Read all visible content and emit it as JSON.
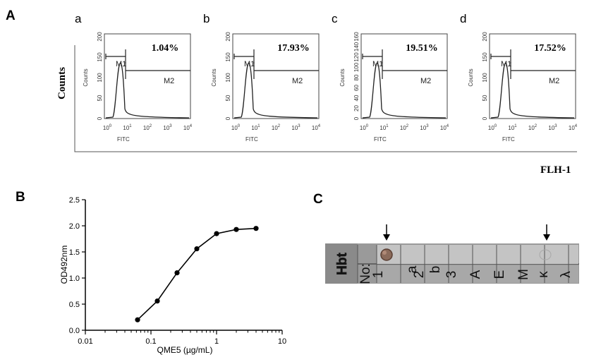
{
  "panel_a": {
    "letter": "A",
    "y_label": "Counts",
    "x_label_outer": "FLH-1",
    "histograms": [
      {
        "sub": "a",
        "pct": "1.04%",
        "y_ticks": [
          "0",
          "50",
          "100",
          "150",
          "200"
        ],
        "x_label": "FITC",
        "gate1": "M1",
        "gate2": "M2",
        "y_axis_label": "Counts"
      },
      {
        "sub": "b",
        "pct": "17.93%",
        "y_ticks": [
          "0",
          "50",
          "100",
          "150",
          "200"
        ],
        "x_label": "FITC",
        "gate1": "M1",
        "gate2": "M2",
        "y_axis_label": "Counts"
      },
      {
        "sub": "c",
        "pct": "19.51%",
        "y_ticks": [
          "0",
          "20",
          "40",
          "60",
          "80",
          "100",
          "120",
          "140",
          "160"
        ],
        "x_label": "FITC",
        "gate1": "M1",
        "gate2": "M2",
        "y_axis_label": "Counts"
      },
      {
        "sub": "d",
        "pct": "17.52%",
        "y_ticks": [
          "0",
          "50",
          "100",
          "150",
          "200"
        ],
        "x_label": "FITC",
        "gate1": "M1",
        "gate2": "M2",
        "y_axis_label": "Counts"
      }
    ],
    "x_ticks": [
      "10",
      "10",
      "10",
      "10",
      "10"
    ],
    "x_exps": [
      "0",
      "1",
      "2",
      "3",
      "4"
    ]
  },
  "panel_b": {
    "letter": "B",
    "chart_data": {
      "type": "line",
      "xlabel": "QME5 (µg/mL)",
      "ylabel": "OD492nm",
      "xscale": "log",
      "xlim": [
        0.01,
        10
      ],
      "ylim": [
        0,
        2.5
      ],
      "x_tick_labels": [
        "0.01",
        "0.1",
        "1",
        "10"
      ],
      "y_tick_labels": [
        "0.0",
        "0.5",
        "1.0",
        "1.5",
        "2.0",
        "2.5"
      ],
      "series": [
        {
          "x": [
            0.0625,
            0.125,
            0.25,
            0.5,
            1,
            2,
            4
          ],
          "y": [
            0.2,
            0.56,
            1.1,
            1.56,
            1.85,
            1.93,
            1.95
          ]
        }
      ]
    }
  },
  "panel_c": {
    "letter": "C",
    "strip_label": "Hbt",
    "no_label": "No:",
    "cells": [
      "1",
      "2",
      "3",
      "A",
      "E",
      "M",
      "κ",
      "λ"
    ],
    "superscripts": [
      "a",
      "b"
    ]
  }
}
